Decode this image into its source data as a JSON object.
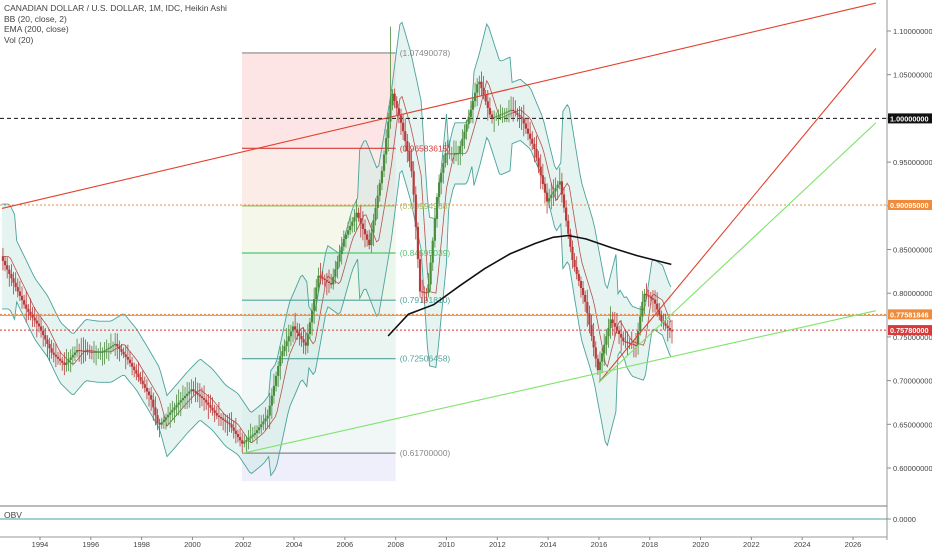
{
  "legend": {
    "title": "CANADIAN DOLLAR / U.S. DOLLAR, 1M, IDC, Heikin Ashi",
    "bb": "BB (20, close, 2)",
    "ema": "EMA (200, close)",
    "vol": "Vol (20)"
  },
  "obv_label": "OBV",
  "obv_axis_label": "0.0000",
  "colors": {
    "up": "#4a8c3c",
    "down": "#b83a3a",
    "bb_fill": "#cfe9e6",
    "bb_line": "#4aa39a",
    "ema": "#111111",
    "trend_red": "#e2412e",
    "trend_green": "#7ee36a",
    "fib_top": "#888888",
    "fib_red": "#d83a3a",
    "fib_olive": "#9fbd63",
    "fib_green": "#4fc66a",
    "fib_teal": "#53a39a",
    "orange": "#ef8b3b",
    "black_badge": "#111111"
  },
  "chart_data": {
    "type": "candlestick",
    "x_ticks": [
      "1994",
      "1996",
      "1998",
      "2000",
      "2002",
      "2004",
      "2006",
      "2008",
      "2010",
      "2012",
      "2014",
      "2016",
      "2018",
      "2020",
      "2022",
      "2024",
      "2026"
    ],
    "y_ticks": [
      "0.60000000",
      "0.65000000",
      "0.70000000",
      "0.75000000",
      "0.80000000",
      "0.85000000",
      "0.90000000",
      "0.95000000",
      "1.00000000",
      "1.05000000",
      "1.10000000"
    ],
    "ylim": [
      0.585,
      1.11
    ],
    "xlim": [
      1992.5,
      2026.9
    ],
    "badges": [
      {
        "value": 1.0,
        "label": "1.00000000",
        "color": "#111111"
      },
      {
        "value": 0.90095,
        "label": "0.90095000",
        "color": "#ef8b3b"
      },
      {
        "value": 0.7758,
        "label": "0.77581846",
        "color": "#ef8b3b"
      },
      {
        "value": 0.7578,
        "label": "0.75780000",
        "color": "#d83a3a"
      }
    ],
    "fib_levels": [
      {
        "value": 1.0749,
        "label": "(1.07490078)",
        "color": "#888888"
      },
      {
        "value": 0.9658,
        "label": "(0.96583615)",
        "color": "#d83a3a"
      },
      {
        "value": 0.8999,
        "label": "(0.89994968)",
        "color": "#9fbd63"
      },
      {
        "value": 0.846,
        "label": "(0.84595039)",
        "color": "#4fc66a"
      },
      {
        "value": 0.792,
        "label": "(0.79191810)",
        "color": "#53a39a"
      },
      {
        "value": 0.7251,
        "label": "(0.72506458)",
        "color": "#53a39a"
      },
      {
        "value": 0.617,
        "label": "(0.61700000)",
        "color": "#888888"
      }
    ],
    "fib_range": {
      "x_start": 2001.95,
      "x_end": 2008.0
    },
    "dotted_levels": [
      {
        "value": 1.0,
        "color": "#111111"
      },
      {
        "value": 0.90095,
        "color": "#ef8b3b"
      },
      {
        "value": 0.7758,
        "color": "#ef8b3b"
      },
      {
        "value": 0.7578,
        "color": "#d83a3a"
      }
    ],
    "trendlines": [
      {
        "color": "#e2412e",
        "points": [
          [
            1992.5,
            0.897
          ],
          [
            2026.9,
            1.132
          ]
        ]
      },
      {
        "color": "#e2412e",
        "points": [
          [
            2016.0,
            0.698
          ],
          [
            2026.9,
            1.08
          ]
        ]
      },
      {
        "color": "#7ee36a",
        "points": [
          [
            2002.0,
            0.617
          ],
          [
            2026.9,
            0.78
          ]
        ]
      },
      {
        "color": "#7ee36a",
        "points": [
          [
            2016.0,
            0.698
          ],
          [
            2026.9,
            0.995
          ]
        ]
      }
    ],
    "price_path": [
      [
        1992.5,
        0.842
      ],
      [
        1993.0,
        0.812
      ],
      [
        1993.5,
        0.782
      ],
      [
        1994.0,
        0.762
      ],
      [
        1994.5,
        0.732
      ],
      [
        1995.0,
        0.718
      ],
      [
        1995.5,
        0.735
      ],
      [
        1996.0,
        0.733
      ],
      [
        1996.5,
        0.733
      ],
      [
        1997.0,
        0.742
      ],
      [
        1997.5,
        0.724
      ],
      [
        1998.0,
        0.7
      ],
      [
        1998.4,
        0.68
      ],
      [
        1998.7,
        0.648
      ],
      [
        1999.0,
        0.658
      ],
      [
        1999.5,
        0.675
      ],
      [
        2000.0,
        0.69
      ],
      [
        2000.5,
        0.678
      ],
      [
        2001.0,
        0.66
      ],
      [
        2001.5,
        0.65
      ],
      [
        2002.0,
        0.628
      ],
      [
        2002.5,
        0.64
      ],
      [
        2003.0,
        0.66
      ],
      [
        2003.5,
        0.728
      ],
      [
        2004.0,
        0.762
      ],
      [
        2004.5,
        0.74
      ],
      [
        2005.0,
        0.82
      ],
      [
        2005.5,
        0.81
      ],
      [
        2006.0,
        0.862
      ],
      [
        2006.5,
        0.892
      ],
      [
        2007.0,
        0.855
      ],
      [
        2007.5,
        0.94
      ],
      [
        2007.9,
        1.03
      ],
      [
        2008.3,
        0.99
      ],
      [
        2008.7,
        0.935
      ],
      [
        2009.0,
        0.802
      ],
      [
        2009.3,
        0.8
      ],
      [
        2009.7,
        0.92
      ],
      [
        2010.0,
        0.96
      ],
      [
        2010.5,
        0.96
      ],
      [
        2011.0,
        1.01
      ],
      [
        2011.3,
        1.045
      ],
      [
        2011.8,
        1.0
      ],
      [
        2012.2,
        1.005
      ],
      [
        2012.6,
        1.01
      ],
      [
        2013.0,
        1.0
      ],
      [
        2013.5,
        0.965
      ],
      [
        2014.0,
        0.905
      ],
      [
        2014.5,
        0.928
      ],
      [
        2015.0,
        0.838
      ],
      [
        2015.5,
        0.79
      ],
      [
        2016.0,
        0.712
      ],
      [
        2016.5,
        0.77
      ],
      [
        2017.0,
        0.745
      ],
      [
        2017.5,
        0.74
      ],
      [
        2017.8,
        0.8
      ],
      [
        2018.2,
        0.792
      ],
      [
        2018.5,
        0.768
      ],
      [
        2018.85,
        0.757
      ]
    ],
    "ema_path": [
      [
        2007.7,
        0.751
      ],
      [
        2008.5,
        0.776
      ],
      [
        2009.5,
        0.787
      ],
      [
        2010.5,
        0.808
      ],
      [
        2011.5,
        0.828
      ],
      [
        2012.5,
        0.845
      ],
      [
        2013.5,
        0.857
      ],
      [
        2014.2,
        0.864
      ],
      [
        2014.8,
        0.866
      ],
      [
        2015.5,
        0.862
      ],
      [
        2016.5,
        0.852
      ],
      [
        2017.5,
        0.843
      ],
      [
        2018.85,
        0.833
      ]
    ]
  }
}
